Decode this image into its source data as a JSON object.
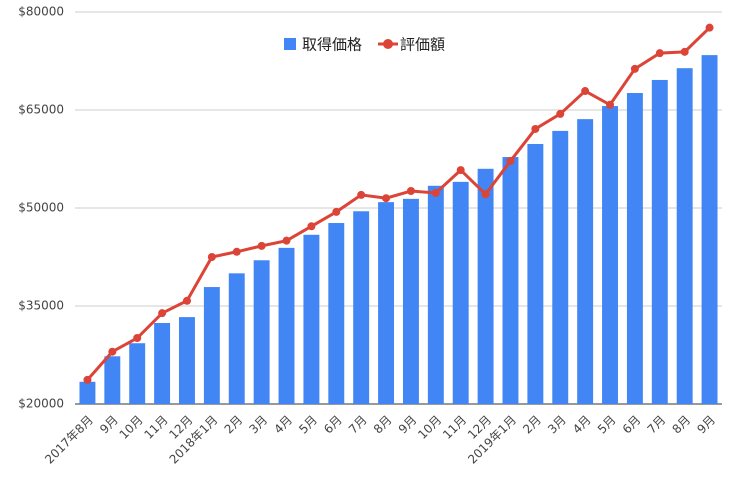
{
  "chart_data": {
    "type": "bar_line",
    "categories": [
      "2017年8月",
      "9月",
      "10月",
      "11月",
      "12月",
      "2018年1月",
      "2月",
      "3月",
      "4月",
      "5月",
      "6月",
      "7月",
      "8月",
      "9月",
      "10月",
      "11月",
      "12月",
      "2019年1月",
      "2月",
      "3月",
      "4月",
      "5月",
      "6月",
      "7月",
      "8月",
      "9月"
    ],
    "series": [
      {
        "name": "取得価格",
        "type": "bar",
        "color": "#4285f4",
        "values": [
          23400,
          27300,
          29300,
          32400,
          33300,
          37900,
          40000,
          42000,
          43900,
          45900,
          47700,
          49500,
          50900,
          51400,
          53400,
          54000,
          56000,
          57800,
          59800,
          61800,
          63600,
          65600,
          67600,
          69600,
          71400,
          73400
        ]
      },
      {
        "name": "評価額",
        "type": "line",
        "color": "#db4437",
        "values": [
          23700,
          28000,
          30100,
          33900,
          35800,
          42500,
          43300,
          44200,
          45000,
          47200,
          49400,
          52000,
          51500,
          52600,
          52300,
          55800,
          52100,
          57200,
          62100,
          64400,
          67900,
          65800,
          71300,
          73700,
          73900,
          77600
        ]
      }
    ],
    "ylim": [
      20000,
      80000
    ],
    "yticks": [
      {
        "value": 20000,
        "label": "$20000"
      },
      {
        "value": 35000,
        "label": "$35000"
      },
      {
        "value": 50000,
        "label": "$50000"
      },
      {
        "value": 65000,
        "label": "$65000"
      },
      {
        "value": 80000,
        "label": "$80000"
      }
    ],
    "grid": true,
    "legend": "top"
  }
}
